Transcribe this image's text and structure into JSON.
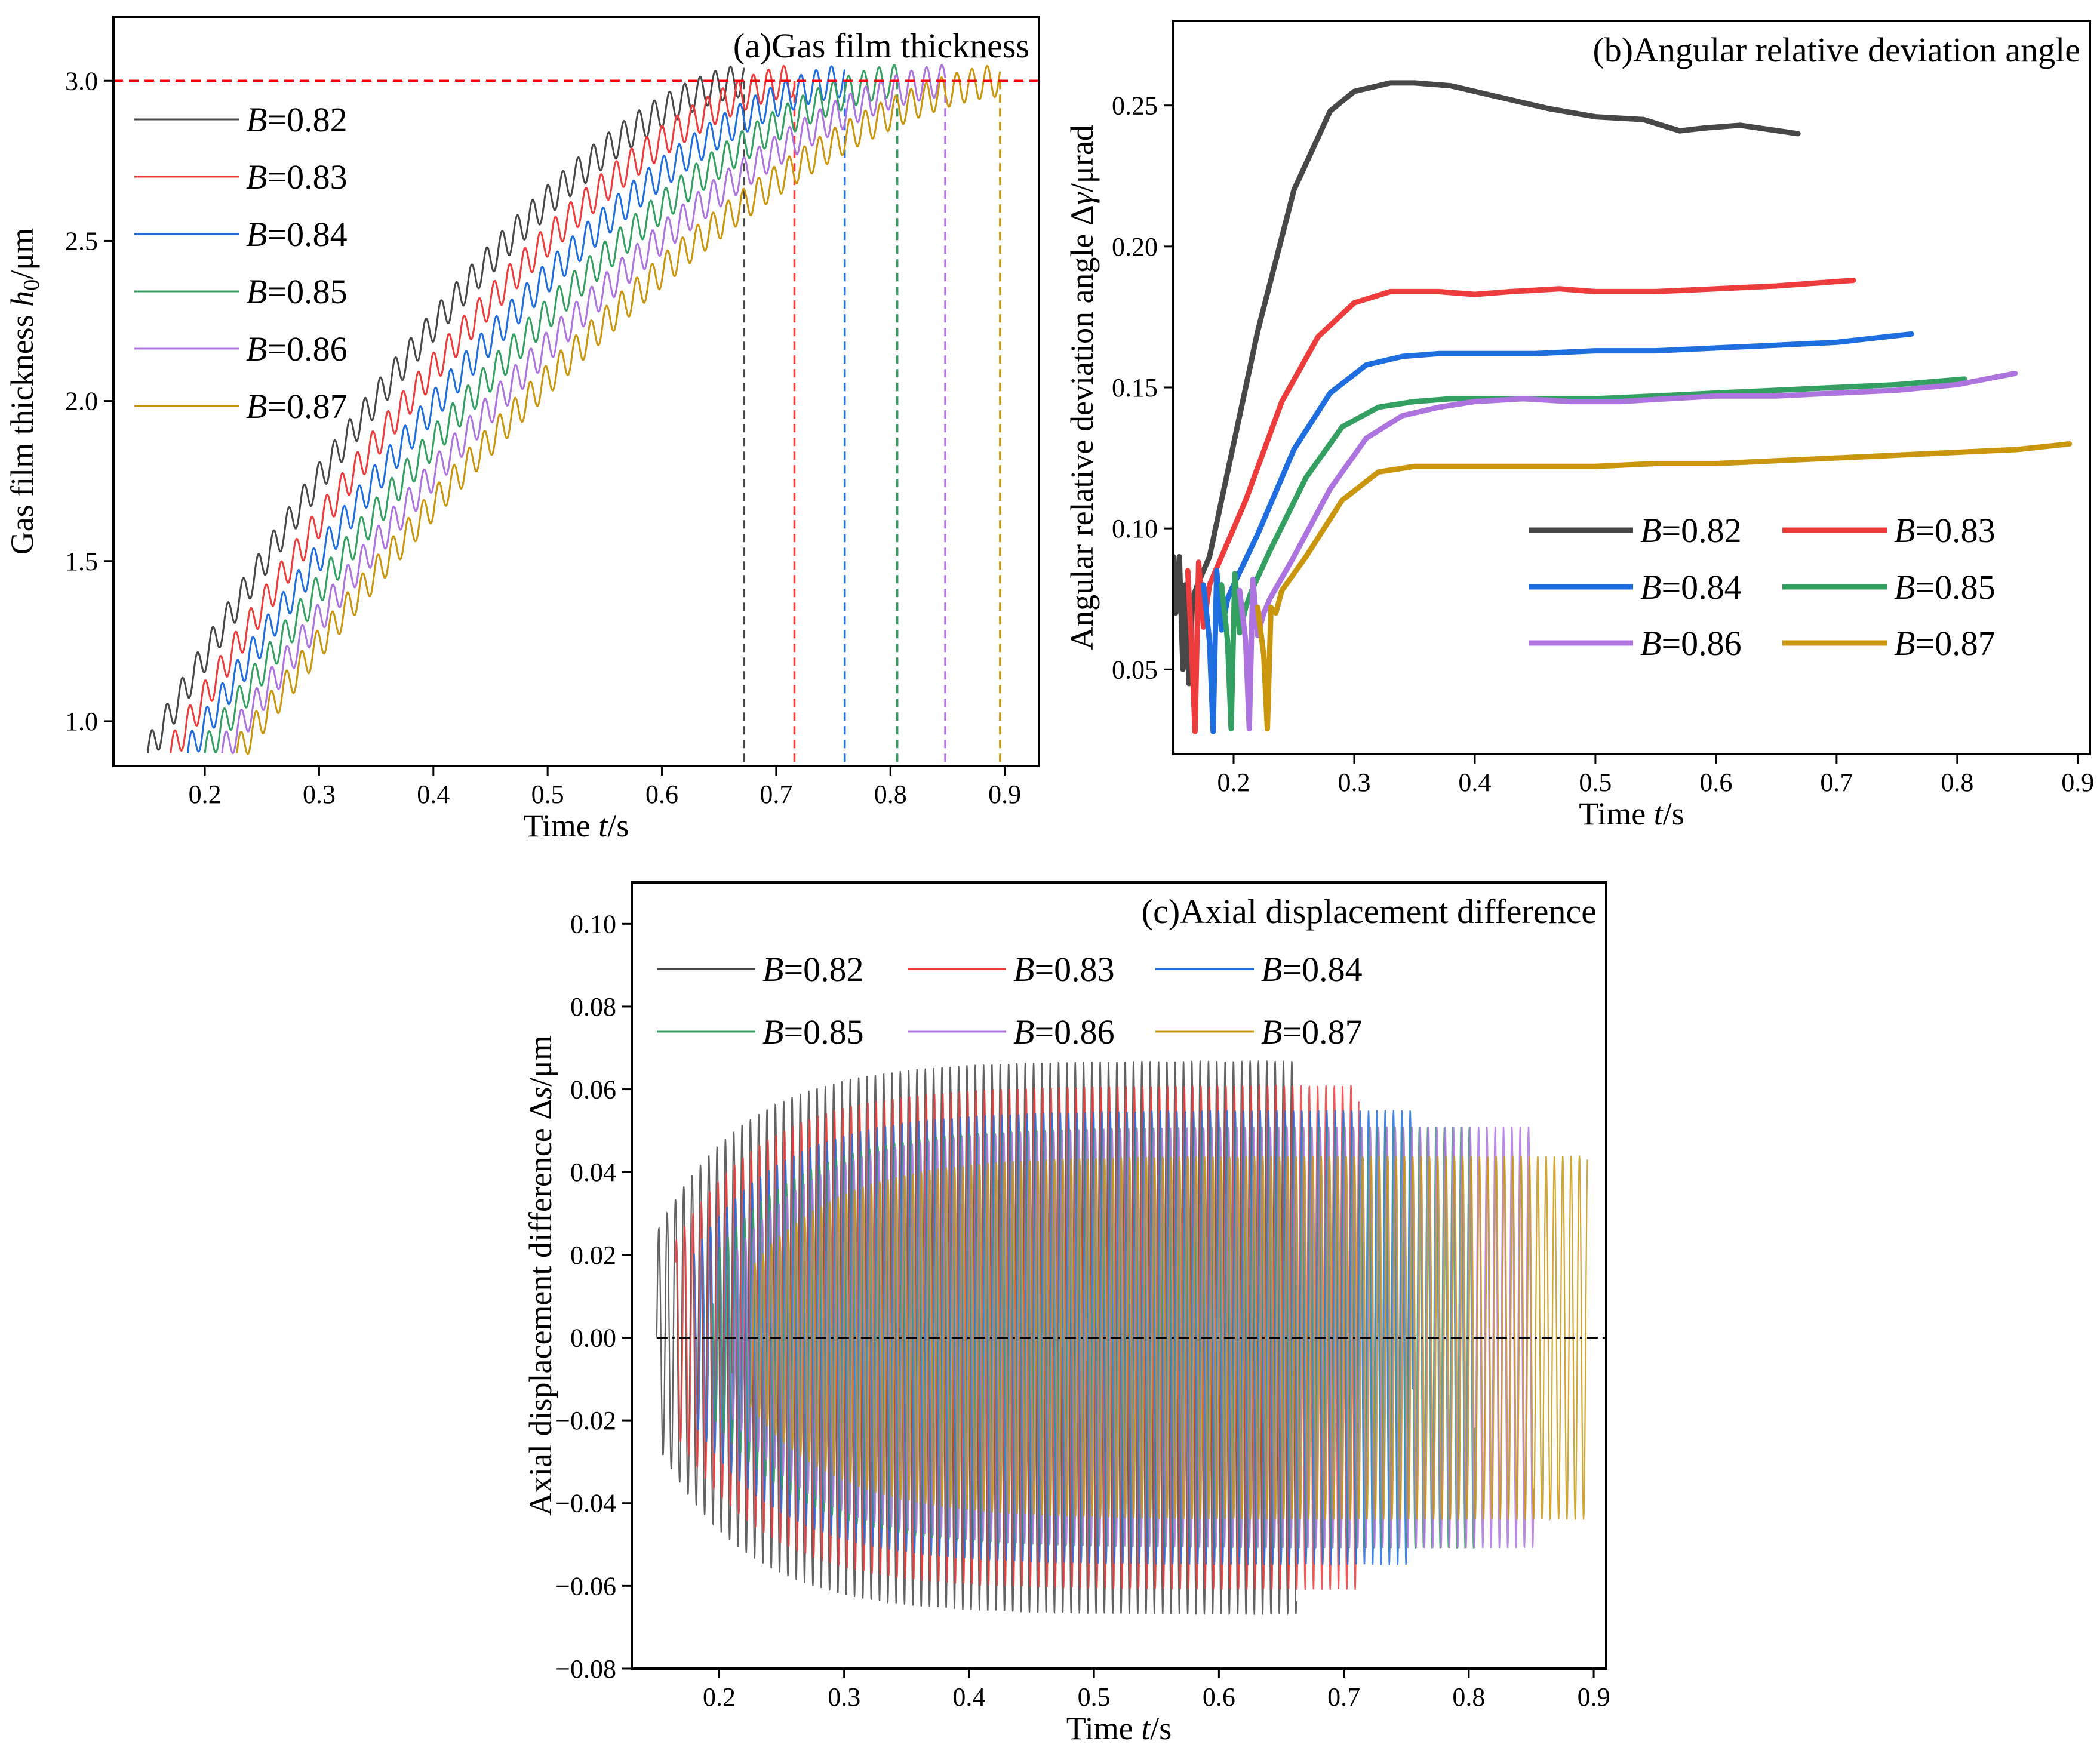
{
  "colors": {
    "B=0.82": "#474747",
    "B=0.83": "#ee3b3b",
    "B=0.84": "#1f6ee0",
    "B=0.85": "#33a061",
    "B=0.86": "#ad74e0",
    "B=0.87": "#c9960e",
    "threshold_line": "#ff0000",
    "zero_line": "#000000"
  },
  "chart_data": [
    {
      "id": "a",
      "type": "line",
      "title": "(a)Gas film thickness",
      "xlabel_prefix": "Time ",
      "xlabel_var": "t",
      "xlabel_suffix": "/s",
      "ylabel_prefix": "Gas film thickness ",
      "ylabel_var": "h",
      "ylabel_sub": "0",
      "ylabel_suffix": "/μm",
      "xlim": [
        0.12,
        0.93
      ],
      "ylim": [
        0.86,
        3.2
      ],
      "xticks": [
        0.2,
        0.3,
        0.4,
        0.5,
        0.6,
        0.7,
        0.8,
        0.9
      ],
      "xtick_labels": [
        "0.2",
        "0.3",
        "0.4",
        "0.5",
        "0.6",
        "0.7",
        "0.8",
        "0.9"
      ],
      "yticks": [
        1.0,
        1.5,
        2.0,
        2.5,
        3.0
      ],
      "ytick_labels": [
        "1.0",
        "1.5",
        "2.0",
        "2.5",
        "3.0"
      ],
      "threshold": 3.0,
      "legend_position": "upper-left",
      "series": [
        {
          "name": "B=0.82",
          "legend_var": "B",
          "legend_value": "=0.82",
          "t_start": 0.15,
          "t_end": 0.672,
          "y_start": 0.9,
          "y_end": 3.0
        },
        {
          "name": "B=0.83",
          "legend_var": "B",
          "legend_value": "=0.83",
          "t_start": 0.17,
          "t_end": 0.716,
          "y_start": 0.9,
          "y_end": 3.0
        },
        {
          "name": "B=0.84",
          "legend_var": "B",
          "legend_value": "=0.84",
          "t_start": 0.185,
          "t_end": 0.76,
          "y_start": 0.9,
          "y_end": 3.0
        },
        {
          "name": "B=0.85",
          "legend_var": "B",
          "legend_value": "=0.85",
          "t_start": 0.2,
          "t_end": 0.806,
          "y_start": 0.9,
          "y_end": 3.0
        },
        {
          "name": "B=0.86",
          "legend_var": "B",
          "legend_value": "=0.86",
          "t_start": 0.215,
          "t_end": 0.848,
          "y_start": 0.9,
          "y_end": 3.0
        },
        {
          "name": "B=0.87",
          "legend_var": "B",
          "legend_value": "=0.87",
          "t_start": 0.228,
          "t_end": 0.896,
          "y_start": 0.9,
          "y_end": 3.0
        }
      ]
    },
    {
      "id": "b",
      "type": "line",
      "title": "(b)Angular relative deviation angle",
      "xlabel_prefix": "Time ",
      "xlabel_var": "t",
      "xlabel_suffix": "/s",
      "ylabel_prefix": "Angular relative deviation angle Δ",
      "ylabel_var": "γ",
      "ylabel_suffix": "/μrad",
      "xlim": [
        0.15,
        0.91
      ],
      "ylim": [
        0.02,
        0.28
      ],
      "xticks": [
        0.2,
        0.3,
        0.4,
        0.5,
        0.6,
        0.7,
        0.8,
        0.9
      ],
      "xtick_labels": [
        "0.2",
        "0.3",
        "0.4",
        "0.5",
        "0.6",
        "0.7",
        "0.8",
        "0.9"
      ],
      "yticks": [
        0.05,
        0.1,
        0.15,
        0.2,
        0.25
      ],
      "ytick_labels": [
        "0.05",
        "0.10",
        "0.15",
        "0.20",
        "0.25"
      ],
      "legend_position": "lower-right",
      "series": [
        {
          "name": "B=0.82",
          "legend_var": "B",
          "legend_value": "=0.82",
          "x": [
            0.15,
            0.152,
            0.155,
            0.158,
            0.16,
            0.163,
            0.166,
            0.17,
            0.18,
            0.2,
            0.22,
            0.25,
            0.28,
            0.3,
            0.33,
            0.35,
            0.38,
            0.42,
            0.46,
            0.5,
            0.54,
            0.57,
            0.59,
            0.62,
            0.668
          ],
          "y": [
            0.09,
            0.07,
            0.09,
            0.05,
            0.08,
            0.045,
            0.075,
            0.08,
            0.09,
            0.13,
            0.17,
            0.22,
            0.248,
            0.255,
            0.258,
            0.258,
            0.257,
            0.253,
            0.249,
            0.246,
            0.245,
            0.241,
            0.242,
            0.243,
            0.24
          ]
        },
        {
          "name": "B=0.83",
          "legend_var": "B",
          "legend_value": "=0.83",
          "x": [
            0.162,
            0.165,
            0.168,
            0.171,
            0.175,
            0.18,
            0.19,
            0.21,
            0.24,
            0.27,
            0.3,
            0.33,
            0.37,
            0.4,
            0.43,
            0.47,
            0.5,
            0.55,
            0.6,
            0.65,
            0.714
          ],
          "y": [
            0.085,
            0.06,
            0.028,
            0.088,
            0.065,
            0.08,
            0.09,
            0.11,
            0.145,
            0.168,
            0.18,
            0.184,
            0.184,
            0.183,
            0.184,
            0.185,
            0.184,
            0.184,
            0.185,
            0.186,
            0.188
          ]
        },
        {
          "name": "B=0.84",
          "legend_var": "B",
          "legend_value": "=0.84",
          "x": [
            0.175,
            0.18,
            0.183,
            0.186,
            0.19,
            0.195,
            0.2,
            0.22,
            0.25,
            0.28,
            0.31,
            0.34,
            0.37,
            0.4,
            0.45,
            0.5,
            0.55,
            0.6,
            0.65,
            0.7,
            0.762
          ],
          "y": [
            0.08,
            0.06,
            0.028,
            0.085,
            0.064,
            0.075,
            0.08,
            0.098,
            0.128,
            0.148,
            0.158,
            0.161,
            0.162,
            0.162,
            0.162,
            0.163,
            0.163,
            0.164,
            0.165,
            0.166,
            0.169
          ]
        },
        {
          "name": "B=0.85",
          "legend_var": "B",
          "legend_value": "=0.85",
          "x": [
            0.19,
            0.195,
            0.198,
            0.201,
            0.205,
            0.21,
            0.215,
            0.23,
            0.26,
            0.29,
            0.32,
            0.35,
            0.38,
            0.42,
            0.46,
            0.5,
            0.55,
            0.6,
            0.65,
            0.7,
            0.75,
            0.806
          ],
          "y": [
            0.08,
            0.06,
            0.029,
            0.084,
            0.063,
            0.072,
            0.078,
            0.092,
            0.118,
            0.136,
            0.143,
            0.145,
            0.146,
            0.146,
            0.146,
            0.146,
            0.147,
            0.148,
            0.149,
            0.15,
            0.151,
            0.153
          ]
        },
        {
          "name": "B=0.86",
          "legend_var": "B",
          "legend_value": "=0.86",
          "x": [
            0.205,
            0.21,
            0.213,
            0.216,
            0.22,
            0.225,
            0.23,
            0.25,
            0.28,
            0.31,
            0.34,
            0.37,
            0.4,
            0.44,
            0.48,
            0.52,
            0.56,
            0.6,
            0.65,
            0.7,
            0.75,
            0.8,
            0.848
          ],
          "y": [
            0.078,
            0.06,
            0.029,
            0.082,
            0.062,
            0.07,
            0.075,
            0.09,
            0.114,
            0.132,
            0.14,
            0.143,
            0.145,
            0.146,
            0.145,
            0.145,
            0.146,
            0.147,
            0.147,
            0.148,
            0.149,
            0.151,
            0.155
          ]
        },
        {
          "name": "B=0.87",
          "legend_var": "B",
          "legend_value": "=0.87",
          "x": [
            0.22,
            0.225,
            0.228,
            0.231,
            0.235,
            0.24,
            0.26,
            0.29,
            0.32,
            0.35,
            0.4,
            0.45,
            0.5,
            0.55,
            0.6,
            0.65,
            0.7,
            0.75,
            0.8,
            0.85,
            0.893
          ],
          "y": [
            0.072,
            0.055,
            0.029,
            0.072,
            0.07,
            0.078,
            0.09,
            0.11,
            0.12,
            0.122,
            0.122,
            0.122,
            0.122,
            0.123,
            0.123,
            0.124,
            0.125,
            0.126,
            0.127,
            0.128,
            0.13
          ]
        }
      ]
    },
    {
      "id": "c",
      "type": "line",
      "title": "(c)Axial displacement difference",
      "xlabel_prefix": "Time ",
      "xlabel_var": "t",
      "xlabel_suffix": "/s",
      "ylabel_prefix": "Axial displacement difference Δ",
      "ylabel_var": "s",
      "ylabel_suffix": "/μm",
      "xlim": [
        0.13,
        0.91
      ],
      "ylim": [
        -0.08,
        0.11
      ],
      "xticks": [
        0.2,
        0.3,
        0.4,
        0.5,
        0.6,
        0.7,
        0.8,
        0.9
      ],
      "xtick_labels": [
        "0.2",
        "0.3",
        "0.4",
        "0.5",
        "0.6",
        "0.7",
        "0.8",
        "0.9"
      ],
      "yticks": [
        -0.08,
        -0.06,
        -0.04,
        -0.02,
        0.0,
        0.02,
        0.04,
        0.06,
        0.08,
        0.1
      ],
      "ytick_labels": [
        "−0.08",
        "−0.06",
        "−0.04",
        "−0.02",
        "0.00",
        "0.02",
        "0.04",
        "0.06",
        "0.08",
        "0.10"
      ],
      "legend_position": "upper-left",
      "series": [
        {
          "name": "B=0.82",
          "legend_var": "B",
          "legend_value": "=0.82",
          "t_start": 0.15,
          "t_end": 0.662,
          "amplitude": 0.067
        },
        {
          "name": "B=0.83",
          "legend_var": "B",
          "legend_value": "=0.83",
          "t_start": 0.165,
          "t_end": 0.712,
          "amplitude": 0.061
        },
        {
          "name": "B=0.84",
          "legend_var": "B",
          "legend_value": "=0.84",
          "t_start": 0.18,
          "t_end": 0.755,
          "amplitude": 0.055
        },
        {
          "name": "B=0.85",
          "legend_var": "B",
          "legend_value": "=0.85",
          "t_start": 0.195,
          "t_end": 0.805,
          "amplitude": 0.051
        },
        {
          "name": "B=0.86",
          "legend_var": "B",
          "legend_value": "=0.86",
          "t_start": 0.21,
          "t_end": 0.852,
          "amplitude": 0.051
        },
        {
          "name": "B=0.87",
          "legend_var": "B",
          "legend_value": "=0.87",
          "t_start": 0.225,
          "t_end": 0.895,
          "amplitude": 0.044
        }
      ]
    }
  ]
}
